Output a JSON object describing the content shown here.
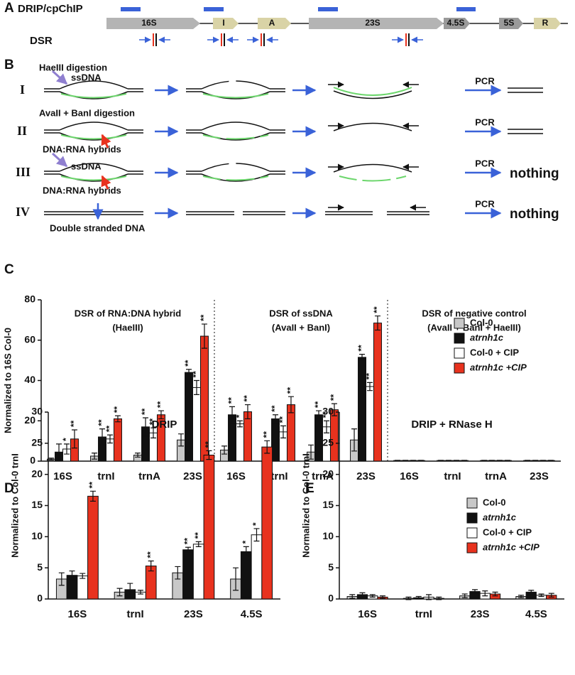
{
  "panel_labels": [
    "A",
    "B",
    "C",
    "D",
    "E"
  ],
  "panel_a": {
    "tracks": [
      "DRIP/cpChIP",
      "DSR"
    ],
    "genes": [
      "16S",
      "I",
      "A",
      "23S",
      "4.5S",
      "5S",
      "R"
    ]
  },
  "panel_b": {
    "rows": [
      {
        "label": "I",
        "annotations": [
          "HaeIII  digestion",
          "ssDNA"
        ],
        "pcr": "PCR"
      },
      {
        "label": "II",
        "annotations": [
          "AvaII + BanI digestion",
          "DNA:RNA hybrids"
        ],
        "pcr": "PCR"
      },
      {
        "label": "III",
        "annotations": [
          "ssDNA",
          "DNA:RNA hybrids"
        ],
        "pcr": "PCR",
        "result": "nothing"
      },
      {
        "label": "IV",
        "annotations": [
          "Double stranded  DNA"
        ],
        "pcr": "PCR",
        "result": "nothing"
      }
    ]
  },
  "chart_data": [
    {
      "type": "bar",
      "ylabel": "Normalized to 16S Col-0",
      "categories": [
        "16S",
        "trnI",
        "trnA",
        "23S",
        "16S",
        "trnI",
        "trnA",
        "23S",
        "16S",
        "trnI",
        "trnA",
        "23S"
      ],
      "group_labels": [
        [
          "DSR of RNA:DNA hybrid",
          "(HaeIII)"
        ],
        [
          "DSR of ssDNA",
          "(AvaII + BanI)"
        ],
        [
          "DSR of negative control",
          "(AvaII + BanI + HaeIII)"
        ]
      ],
      "series": [
        {
          "name": "Col-0",
          "color": "#c8c8c8",
          "values": [
            1,
            2.5,
            3,
            10.5,
            5.5,
            4,
            4.5,
            10.5,
            0.3,
            0.3,
            0.3,
            0.3
          ],
          "errors": [
            0.5,
            1.5,
            1,
            3,
            2,
            2.5,
            3.5,
            5.5,
            0.1,
            0.1,
            0.1,
            0.1
          ],
          "significance": [
            null,
            null,
            null,
            null,
            null,
            null,
            null,
            null,
            null,
            null,
            null,
            null
          ]
        },
        {
          "name": "atrnh1c",
          "color": "#111111",
          "values": [
            4.5,
            12,
            17,
            44,
            23,
            21,
            23,
            51.5,
            0.3,
            0.3,
            0.3,
            0.3
          ],
          "errors": [
            4,
            4,
            4.5,
            1.5,
            4,
            2,
            2,
            1.5,
            0.1,
            0.1,
            0.1,
            0.1
          ],
          "significance": [
            null,
            "**",
            "**",
            "**",
            "**",
            "**",
            "**",
            "**",
            null,
            null,
            null,
            null
          ]
        },
        {
          "name": "Col-0 + CIP",
          "color": "#ffffff",
          "values": [
            6,
            11,
            14,
            36.5,
            18.5,
            14.5,
            17,
            37,
            0.3,
            0.3,
            0.3,
            0.3
          ],
          "errors": [
            2.5,
            2,
            2.5,
            3.5,
            1.5,
            3,
            3,
            2,
            0.1,
            0.1,
            0.1,
            0.1
          ],
          "significance": [
            "*",
            "**",
            "**",
            "**",
            "*",
            "**",
            "**",
            "**",
            null,
            null,
            null,
            null
          ]
        },
        {
          "name": "atrnh1c +CIP",
          "color": "#e8321e",
          "values": [
            11,
            21,
            23,
            62,
            24.5,
            28,
            25.5,
            68.5,
            0.3,
            0.3,
            0.3,
            0.3
          ],
          "errors": [
            4.5,
            1.5,
            2,
            6,
            3.5,
            4,
            3,
            3.5,
            0.1,
            0.1,
            0.1,
            0.1
          ],
          "significance": [
            "**",
            "**",
            "**",
            "**",
            "**",
            "**",
            "**",
            "**",
            null,
            null,
            null,
            null
          ]
        }
      ],
      "ylim": [
        0,
        80
      ],
      "yticks": [
        0,
        20,
        40,
        60,
        80
      ],
      "legend": "right"
    },
    {
      "type": "bar",
      "title": "DRIP",
      "ylabel": "Normalized to Col-0 trnI",
      "categories": [
        "16S",
        "trnI",
        "23S",
        "4.5S"
      ],
      "series": [
        {
          "name": "Col-0",
          "color": "#c8c8c8",
          "values": [
            3.2,
            1.1,
            4.2,
            3.2
          ],
          "errors": [
            1,
            0.6,
            1,
            1.8
          ],
          "significance": [
            null,
            null,
            null,
            null
          ]
        },
        {
          "name": "atrnh1c",
          "color": "#111111",
          "values": [
            3.8,
            1.5,
            7.9,
            7.6
          ],
          "errors": [
            0.7,
            1,
            0.4,
            0.8
          ],
          "significance": [
            null,
            null,
            "**",
            "*"
          ]
        },
        {
          "name": "Col-0 + CIP",
          "color": "#ffffff",
          "values": [
            3.7,
            1.1,
            8.8,
            10.3
          ],
          "errors": [
            0.4,
            0.3,
            0.4,
            1
          ],
          "significance": [
            null,
            null,
            "**",
            "*"
          ]
        },
        {
          "name": "atrnh1c +CIP",
          "color": "#e8321e",
          "values": [
            16.5,
            5.3,
            23.1,
            24.4
          ],
          "errors": [
            0.8,
            0.8,
            0.7,
            1
          ],
          "significance": [
            "**",
            "**",
            "**",
            "**"
          ]
        }
      ],
      "ylim": [
        0,
        30
      ],
      "yticks": [
        0,
        5,
        10,
        15,
        20,
        25,
        30
      ],
      "legend": "none"
    },
    {
      "type": "bar",
      "title": "DRIP + RNase H",
      "ylabel": "Normalized to Col-0 trnI",
      "categories": [
        "16S",
        "trnI",
        "23S",
        "4.5S"
      ],
      "series": [
        {
          "name": "Col-0",
          "color": "#c8c8c8",
          "values": [
            0.4,
            0.1,
            0.5,
            0.4
          ],
          "errors": [
            0.3,
            0.2,
            0.3,
            0.2
          ]
        },
        {
          "name": "atrnh1c",
          "color": "#111111",
          "values": [
            0.7,
            0.2,
            1.2,
            1.1
          ],
          "errors": [
            0.3,
            0.2,
            0.3,
            0.3
          ]
        },
        {
          "name": "Col-0 + CIP",
          "color": "#ffffff",
          "values": [
            0.5,
            0.3,
            0.9,
            0.6
          ],
          "errors": [
            0.2,
            0.4,
            0.4,
            0.2
          ]
        },
        {
          "name": "atrnh1c +CIP",
          "color": "#e8321e",
          "values": [
            0.3,
            0.1,
            0.8,
            0.6
          ],
          "errors": [
            0.2,
            0.2,
            0.3,
            0.3
          ]
        }
      ],
      "ylim": [
        0,
        30
      ],
      "yticks": [
        0,
        5,
        10,
        15,
        20,
        25,
        30
      ],
      "legend": "right"
    }
  ]
}
